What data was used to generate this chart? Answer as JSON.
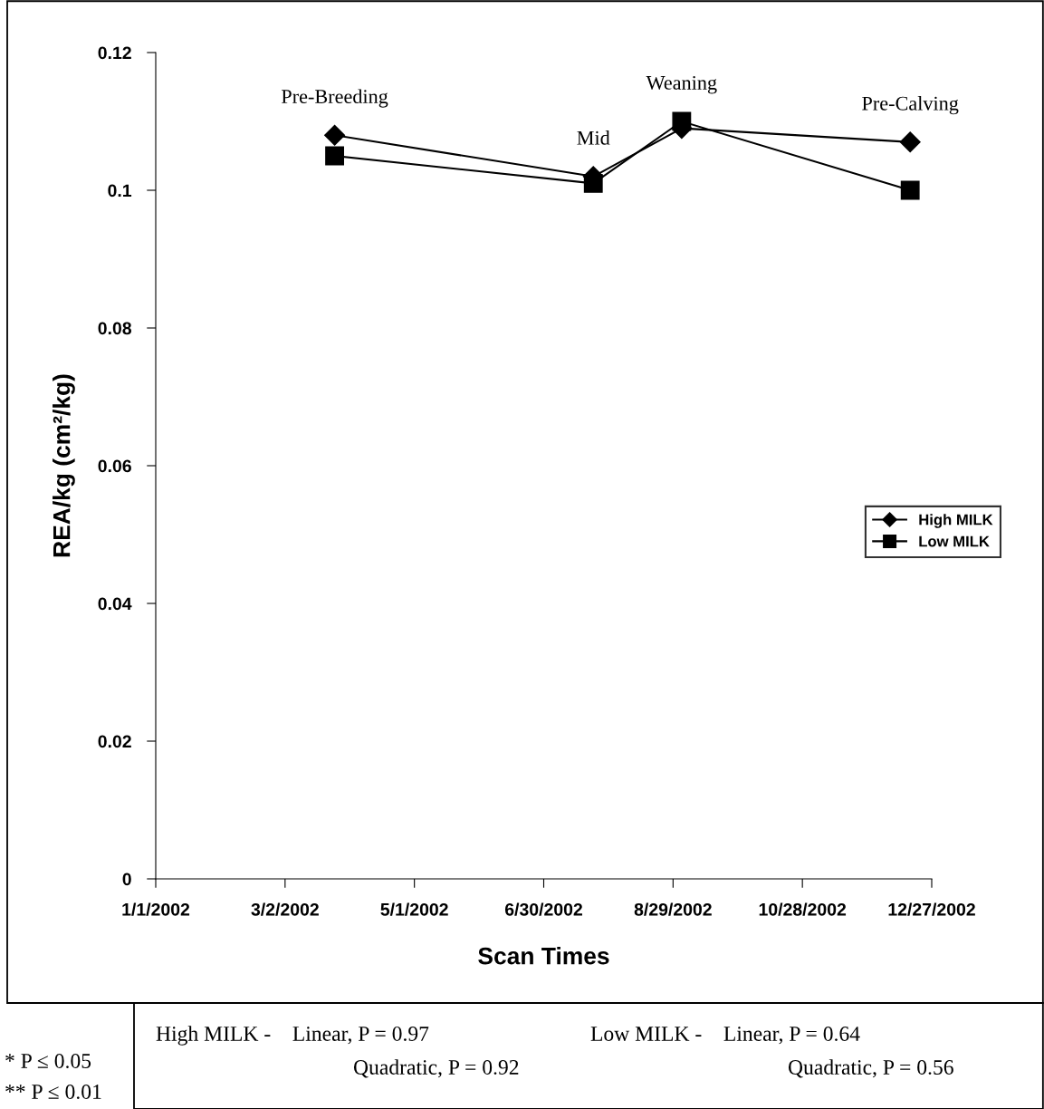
{
  "chart_data": {
    "type": "line",
    "xlabel": "Scan Times",
    "ylabel": "REA/kg (cm²/kg)",
    "x": [
      "2002-03-25",
      "2002-07-23",
      "2002-09-02",
      "2002-12-17"
    ],
    "series": [
      {
        "name": "High MILK",
        "color": "#000000",
        "marker": "diamond",
        "values": [
          0.108,
          0.102,
          0.109,
          0.107
        ]
      },
      {
        "name": "Low MILK",
        "color": "#000000",
        "marker": "square",
        "values": [
          0.105,
          0.101,
          0.11,
          0.1
        ]
      }
    ],
    "xlim": [
      "2002-01-01",
      "2002-12-27"
    ],
    "xticks": [
      {
        "value": "2002-01-01",
        "label": "1/1/2002"
      },
      {
        "value": "2002-03-02",
        "label": "3/2/2002"
      },
      {
        "value": "2002-05-01",
        "label": "5/1/2002"
      },
      {
        "value": "2002-06-30",
        "label": "6/30/2002"
      },
      {
        "value": "2002-08-29",
        "label": "8/29/2002"
      },
      {
        "value": "2002-10-28",
        "label": "10/28/2002"
      },
      {
        "value": "2002-12-27",
        "label": "12/27/2002"
      }
    ],
    "ylim": [
      0,
      0.12
    ],
    "yticks": [
      0,
      0.02,
      0.04,
      0.06,
      0.08,
      0.1,
      0.12
    ],
    "grid": false,
    "legend": "right",
    "line_style": "solid",
    "annotations": [
      {
        "text": "Pre-Breeding",
        "x": "2002-03-25",
        "y": 0.108
      },
      {
        "text": "Mid",
        "x": "2002-07-23",
        "y": 0.102
      },
      {
        "text": "Weaning",
        "x": "2002-09-02",
        "y": 0.11
      },
      {
        "text": "Pre-Calving",
        "x": "2002-12-17",
        "y": 0.107
      },
      "High MILK -    Linear, P = 0.97",
      "Quadratic, P = 0.92",
      "Low MILK -    Linear, P = 0.64",
      "Quadratic, P = 0.56",
      "* P ≤ 0.05",
      "** P ≤ 0.01"
    ]
  }
}
